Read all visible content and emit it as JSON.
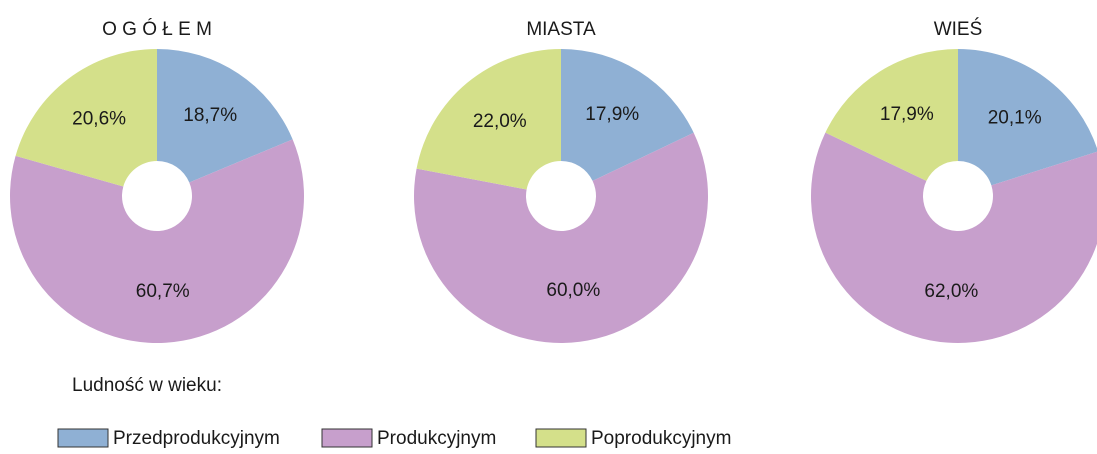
{
  "chart_data": [
    {
      "type": "donut",
      "title": "O G Ó Ł E M",
      "categories": [
        "Przedprodukcyjnym",
        "Produkcyjnym",
        "Poprodukcyjnym"
      ],
      "values": [
        18.7,
        60.7,
        20.6
      ],
      "value_labels": [
        "18,7%",
        "60,7%",
        "20,6%"
      ],
      "colors": [
        "#8fb0d4",
        "#c79fcc",
        "#d4e08a"
      ]
    },
    {
      "type": "donut",
      "title": "MIASTA",
      "categories": [
        "Przedprodukcyjnym",
        "Produkcyjnym",
        "Poprodukcyjnym"
      ],
      "values": [
        17.9,
        60.0,
        22.0
      ],
      "value_labels": [
        "17,9%",
        "60,0%",
        "22,0%"
      ],
      "colors": [
        "#8fb0d4",
        "#c79fcc",
        "#d4e08a"
      ]
    },
    {
      "type": "donut",
      "title": "WIEŚ",
      "categories": [
        "Przedprodukcyjnym",
        "Produkcyjnym",
        "Poprodukcyjnym"
      ],
      "values": [
        20.1,
        62.0,
        17.9
      ],
      "value_labels": [
        "20,1%",
        "62,0%",
        "17,9%"
      ],
      "colors": [
        "#8fb0d4",
        "#c79fcc",
        "#d4e08a"
      ]
    }
  ],
  "legend_title": "Ludność w wieku:"
}
